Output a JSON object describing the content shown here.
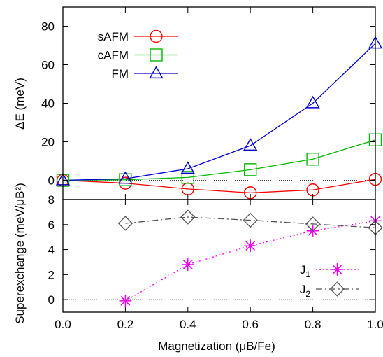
{
  "chart_data": [
    {
      "type": "line",
      "ylabel": "ΔE (meV)",
      "ylim": [
        -10,
        90
      ],
      "yticks": [
        0,
        20,
        40,
        60,
        80
      ],
      "xlim": [
        0,
        1
      ],
      "grid": false,
      "zero_line": true,
      "legend_position": "top-left",
      "series": [
        {
          "name": "sAFM",
          "marker": "circle",
          "color": "#ff0000",
          "line_style": "solid",
          "x": [
            0,
            0.2,
            0.4,
            0.6,
            0.8,
            1.0
          ],
          "y": [
            0,
            -1.5,
            -4.5,
            -6.5,
            -5,
            0.5
          ]
        },
        {
          "name": "cAFM",
          "marker": "square",
          "color": "#00bb00",
          "line_style": "solid",
          "x": [
            0,
            0.2,
            0.4,
            0.6,
            0.8,
            1.0
          ],
          "y": [
            0,
            0.3,
            1.5,
            5.5,
            11,
            21
          ]
        },
        {
          "name": "FM",
          "marker": "triangle",
          "color": "#0000cc",
          "line_style": "solid",
          "x": [
            0,
            0.2,
            0.4,
            0.6,
            0.8,
            1.0
          ],
          "y": [
            0,
            0.8,
            6,
            18,
            40,
            71
          ]
        }
      ]
    },
    {
      "type": "line",
      "ylabel": "Superexchange (meV/μB²)",
      "xlabel": "Magnetization (μB/Fe)",
      "ylim": [
        -1,
        8
      ],
      "yticks": [
        0,
        2,
        4,
        6,
        8
      ],
      "xlim": [
        0,
        1
      ],
      "xticks": [
        0.0,
        0.2,
        0.4,
        0.6,
        0.8,
        1.0
      ],
      "xtick_labels": [
        "0.0",
        "0.2",
        "0.4",
        "0.6",
        "0.8",
        "1.0"
      ],
      "grid": false,
      "zero_line": true,
      "legend_position": "bottom-right",
      "series": [
        {
          "name": "J1",
          "marker": "asterisk",
          "color": "#ee00ee",
          "line_style": "dotted",
          "x": [
            0.2,
            0.4,
            0.6,
            0.8,
            1.0
          ],
          "y": [
            -0.1,
            2.8,
            4.3,
            5.5,
            6.3
          ]
        },
        {
          "name": "J2",
          "marker": "diamond",
          "color": "#555555",
          "line_style": "dashdot",
          "x": [
            0.2,
            0.4,
            0.6,
            0.8,
            1.0
          ],
          "y": [
            6.1,
            6.6,
            6.35,
            6.05,
            5.75
          ]
        }
      ]
    }
  ]
}
